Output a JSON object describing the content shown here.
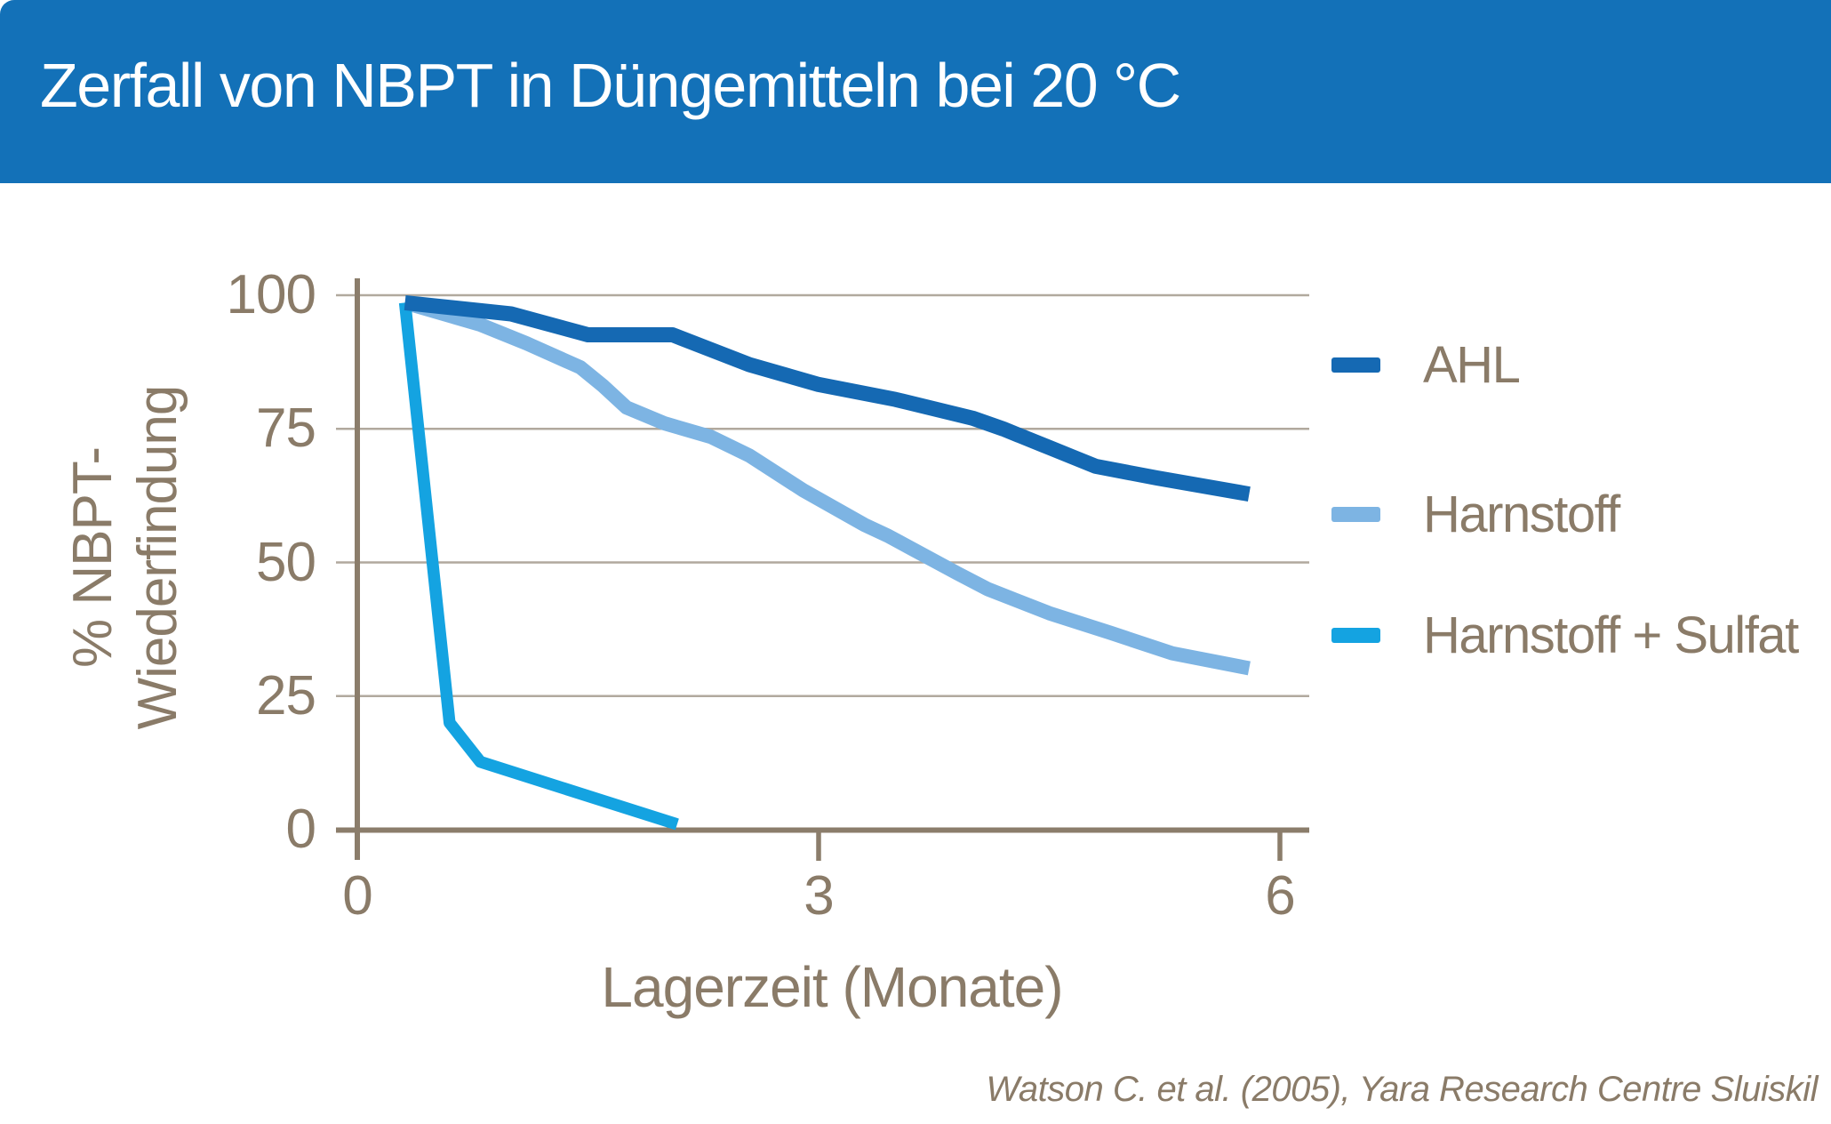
{
  "header": {
    "title": "Zerfall von NBPT in Düngemitteln bei 20 °C"
  },
  "source": "Watson C. et al. (2005), Yara Research Centre Sluiskil",
  "colors": {
    "banner": "#1371b8",
    "axis": "#8b7d6b",
    "grid": "#b1a99e",
    "text": "#8a7b68"
  },
  "chart_data": {
    "type": "line",
    "title": "Zerfall von NBPT in Düngemitteln bei 20 °C",
    "xlabel": "Lagerzeit (Monate)",
    "ylabel": "% NBPT-Wiederfindung",
    "ylabel_lines": [
      "% NBPT-",
      "Wiederfindung"
    ],
    "xlim": [
      0,
      6.2
    ],
    "ylim": [
      0,
      100
    ],
    "xticks": [
      0,
      3,
      6
    ],
    "yticks": [
      0,
      25,
      50,
      75,
      100
    ],
    "grid": "horizontal",
    "legend_position": "right",
    "series": [
      {
        "name": "AHL",
        "color": "#1569b3",
        "points": [
          [
            0.31,
            98.6
          ],
          [
            1.0,
            96.5
          ],
          [
            1.5,
            92.6
          ],
          [
            2.05,
            92.6
          ],
          [
            2.55,
            87
          ],
          [
            3.0,
            83.3
          ],
          [
            3.5,
            80.5
          ],
          [
            4.0,
            77
          ],
          [
            4.2,
            75
          ],
          [
            4.5,
            71.5
          ],
          [
            4.8,
            68
          ],
          [
            5.2,
            65.8
          ],
          [
            5.8,
            62.8
          ]
        ]
      },
      {
        "name": "Harnstoff",
        "color": "#7db4e3",
        "points": [
          [
            0.31,
            98.6
          ],
          [
            0.8,
            94.5
          ],
          [
            1.1,
            91
          ],
          [
            1.45,
            86.5
          ],
          [
            1.6,
            83
          ],
          [
            1.75,
            79
          ],
          [
            2.0,
            76
          ],
          [
            2.3,
            73.5
          ],
          [
            2.55,
            70
          ],
          [
            2.9,
            63.5
          ],
          [
            3.3,
            57
          ],
          [
            3.45,
            55
          ],
          [
            3.9,
            48
          ],
          [
            4.1,
            45
          ],
          [
            4.5,
            40.5
          ],
          [
            4.9,
            36.8
          ],
          [
            5.3,
            33
          ],
          [
            5.8,
            30.2
          ]
        ]
      },
      {
        "name": "Harnstoff + Sulfat",
        "color": "#14a3e1",
        "points": [
          [
            0.31,
            98.6
          ],
          [
            0.6,
            20
          ],
          [
            0.8,
            12.7
          ],
          [
            2.08,
            1
          ]
        ]
      }
    ]
  }
}
